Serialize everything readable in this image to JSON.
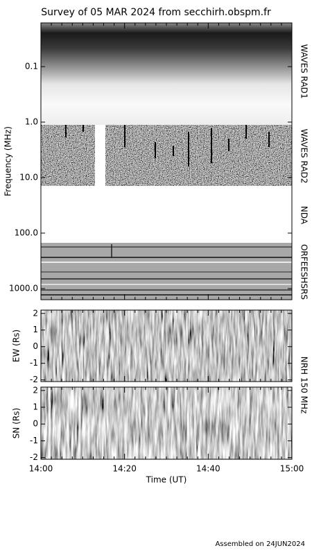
{
  "title": "Survey of 05 MAR 2024 from secchirh.obspm.fr",
  "chart_data": [
    {
      "type": "spectrogram",
      "ylabel": "Frequency (MHz)",
      "log_scale": true,
      "ylim": [
        0.0163,
        1585
      ],
      "yticks": [
        0.1,
        {
          "value": 1,
          "label": "1.0"
        },
        {
          "value": 10,
          "label": "10.0"
        },
        {
          "value": 100,
          "label": "100.0"
        },
        {
          "value": 1000,
          "label": "1000.0"
        }
      ],
      "band_labels": [
        "WAVES RAD1",
        "WAVES RAD2",
        "NDA",
        "ORFEESHSRS"
      ]
    },
    {
      "type": "image",
      "ylabel": "EW (Rs)",
      "ylim": [
        -2.1,
        2.2
      ],
      "yticks": [
        2,
        1,
        0,
        -1,
        -2
      ]
    },
    {
      "type": "image",
      "ylabel": "SN (Rs)",
      "ylim": [
        -2.1,
        2.2
      ],
      "yticks": [
        2,
        1,
        0,
        -1,
        -2
      ],
      "side_label": "NRH 150 MHz",
      "xlabel": "Time (UT)",
      "xlim": [
        840,
        900
      ],
      "xticks": [
        {
          "value": 840,
          "label": "14:00"
        },
        {
          "value": 860,
          "label": "14:20"
        },
        {
          "value": 880,
          "label": "14:40"
        },
        {
          "value": 900,
          "label": "15:00"
        }
      ]
    }
  ],
  "footer": "Assembled on 24JUN2024"
}
